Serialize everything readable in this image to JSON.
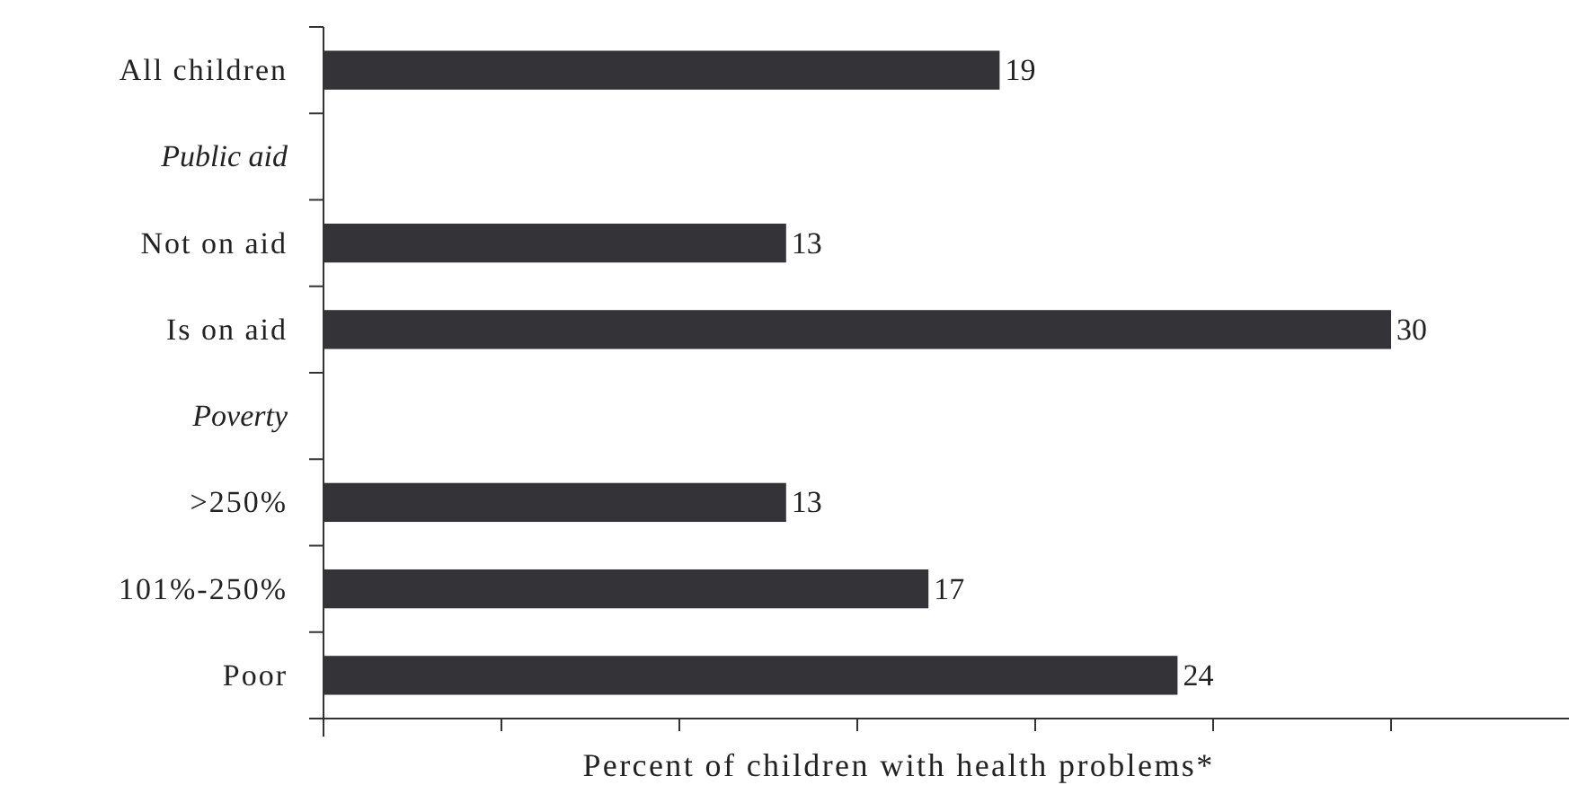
{
  "chart_data": {
    "type": "bar",
    "orientation": "horizontal",
    "xlabel": "Percent of children with health problems*",
    "categories": [
      "All children",
      "Public aid",
      "Not on aid",
      "Is on aid",
      "Poverty",
      ">250%",
      "101%-250%",
      "Poor"
    ],
    "values": [
      19,
      null,
      13,
      30,
      null,
      13,
      17,
      24
    ],
    "color": "#333338",
    "data_labels": true,
    "xlim": [
      0,
      35
    ],
    "xticks": [
      {
        "value": 0,
        "label": null
      },
      {
        "value": 5,
        "label": null
      },
      {
        "value": 10,
        "label": null
      },
      {
        "value": 15,
        "label": null
      },
      {
        "value": 20,
        "label": null
      },
      {
        "value": 25,
        "label": null
      },
      {
        "value": 30,
        "label": null
      }
    ],
    "tick_labels": "y",
    "grid": false
  }
}
